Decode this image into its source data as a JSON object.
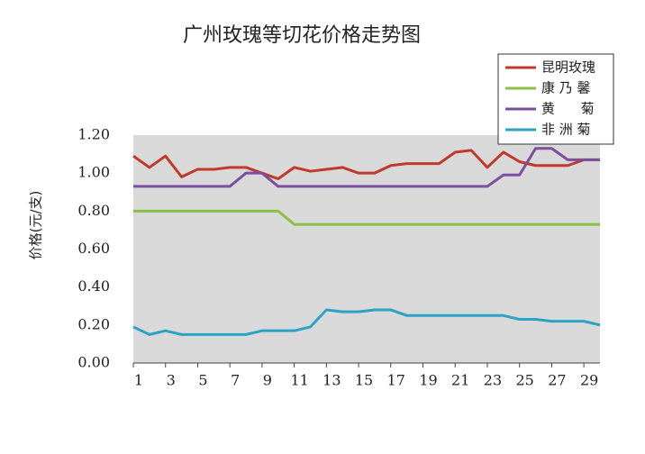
{
  "chart_data": {
    "type": "line",
    "title": "广州玫瑰等切花价格走势图",
    "y_label": "价格(元/支)",
    "x": [
      1,
      2,
      3,
      4,
      5,
      6,
      7,
      8,
      9,
      10,
      11,
      12,
      13,
      14,
      15,
      16,
      17,
      18,
      19,
      20,
      21,
      22,
      23,
      24,
      25,
      26,
      27,
      28,
      29,
      30
    ],
    "xlim": [
      1,
      30
    ],
    "xticks": [
      1,
      3,
      5,
      7,
      9,
      11,
      13,
      15,
      17,
      19,
      21,
      23,
      25,
      27,
      29
    ],
    "ylim": [
      0,
      1.2
    ],
    "yticks": [
      {
        "value": 0,
        "label": "0.00"
      },
      {
        "value": 0.2,
        "label": "0.20"
      },
      {
        "value": 0.4,
        "label": "0.40"
      },
      {
        "value": 0.6,
        "label": "0.60"
      },
      {
        "value": 0.8,
        "label": "0.80"
      },
      {
        "value": 1.0,
        "label": "1.00"
      },
      {
        "value": 1.2,
        "label": "1.20"
      }
    ],
    "grid": false,
    "legend": "upper right",
    "series": [
      {
        "name": "昆明玫瑰",
        "color": "#c0392b",
        "values": [
          1.09,
          1.03,
          1.09,
          0.98,
          1.02,
          1.02,
          1.03,
          1.03,
          1.0,
          0.97,
          1.03,
          1.01,
          1.02,
          1.03,
          1.0,
          1.0,
          1.04,
          1.05,
          1.05,
          1.05,
          1.11,
          1.12,
          1.03,
          1.11,
          1.06,
          1.04,
          1.04,
          1.04,
          1.07,
          1.07
        ]
      },
      {
        "name": "康 乃 馨",
        "color": "#8dbf45",
        "values": [
          0.8,
          0.8,
          0.8,
          0.8,
          0.8,
          0.8,
          0.8,
          0.8,
          0.8,
          0.8,
          0.73,
          0.73,
          0.73,
          0.73,
          0.73,
          0.73,
          0.73,
          0.73,
          0.73,
          0.73,
          0.73,
          0.73,
          0.73,
          0.73,
          0.73,
          0.73,
          0.73,
          0.73,
          0.73,
          0.73
        ]
      },
      {
        "name": "黄      菊",
        "color": "#7b4fa0",
        "values": [
          0.93,
          0.93,
          0.93,
          0.93,
          0.93,
          0.93,
          0.93,
          1.0,
          1.0,
          0.93,
          0.93,
          0.93,
          0.93,
          0.93,
          0.93,
          0.93,
          0.93,
          0.93,
          0.93,
          0.93,
          0.93,
          0.93,
          0.93,
          0.99,
          0.99,
          1.13,
          1.13,
          1.07,
          1.07,
          1.07
        ]
      },
      {
        "name": "非 洲 菊",
        "color": "#2ba3c4",
        "values": [
          0.19,
          0.15,
          0.17,
          0.15,
          0.15,
          0.15,
          0.15,
          0.15,
          0.17,
          0.17,
          0.17,
          0.19,
          0.28,
          0.27,
          0.27,
          0.28,
          0.28,
          0.25,
          0.25,
          0.25,
          0.25,
          0.25,
          0.25,
          0.25,
          0.23,
          0.23,
          0.22,
          0.22,
          0.22,
          0.2
        ]
      }
    ]
  }
}
